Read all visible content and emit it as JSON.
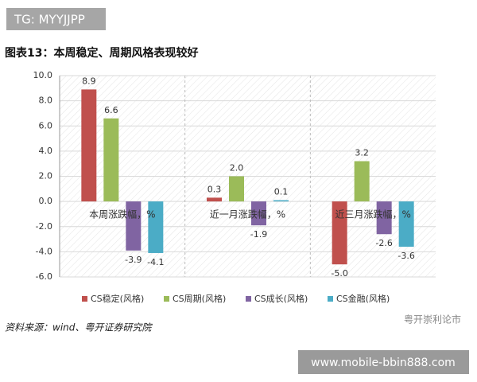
{
  "tag": "TG: MYYJJPP",
  "source": "资料来源：wind、粤开证券研究院",
  "watermark": "粤开崇利论市",
  "footer_link": "www.mobile-bbin888.com",
  "chart_data": {
    "type": "bar",
    "title": "图表13：本周稳定、周期风格表现较好",
    "categories": [
      "本周涨跌幅，%",
      "近一月涨跌幅，%",
      "近三月涨跌幅，%"
    ],
    "series": [
      {
        "name": "CS稳定(风格)",
        "color": "#c0504d",
        "values": [
          8.9,
          0.3,
          -5.0
        ],
        "value_labels": [
          "8.9",
          "0.3",
          "-5.0"
        ]
      },
      {
        "name": "CS周期(风格)",
        "color": "#9bbb59",
        "values": [
          6.6,
          2.0,
          3.2
        ],
        "value_labels": [
          "6.6",
          "2.0",
          "3.2"
        ]
      },
      {
        "name": "CS成长(风格)",
        "color": "#8064a2",
        "values": [
          -3.9,
          -1.9,
          -2.6
        ],
        "value_labels": [
          "-3.9",
          "-1.9",
          "-2.6"
        ]
      },
      {
        "name": "CS金融(风格)",
        "color": "#4bacc6",
        "values": [
          -4.1,
          0.1,
          -3.6
        ],
        "value_labels": [
          "-4.1",
          "0.1",
          "-3.6"
        ]
      }
    ],
    "ylim": [
      -6,
      10
    ],
    "yticks": [
      {
        "value": -6,
        "label": "-6.0"
      },
      {
        "value": -4,
        "label": "-4.0"
      },
      {
        "value": -2,
        "label": "-2.0"
      },
      {
        "value": 0,
        "label": "0.0"
      },
      {
        "value": 2,
        "label": "2.0"
      },
      {
        "value": 4,
        "label": "4.0"
      },
      {
        "value": 6,
        "label": "6.0"
      },
      {
        "value": 8,
        "label": "8.0"
      },
      {
        "value": 10,
        "label": "10.0"
      }
    ],
    "grid": true
  }
}
